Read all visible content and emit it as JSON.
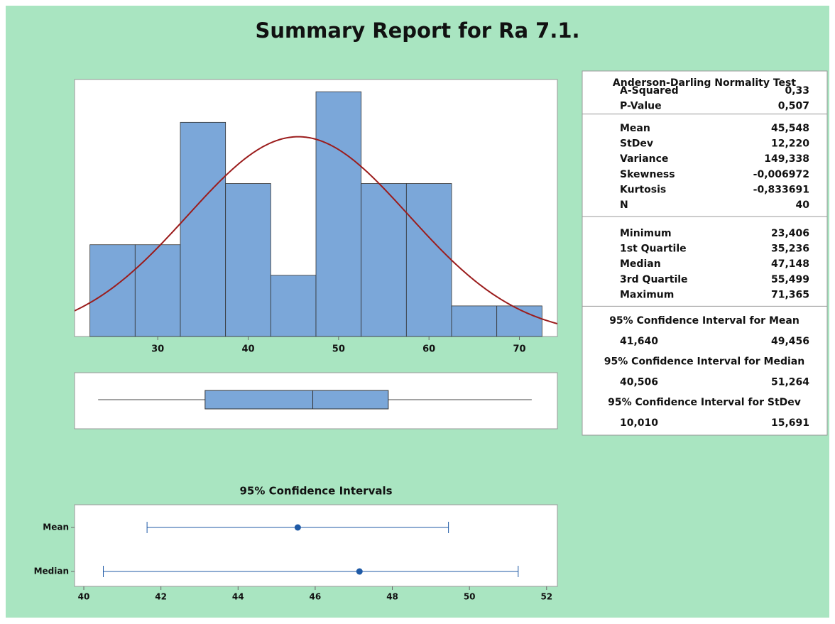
{
  "title": "Summary Report for Ra 7.1.",
  "chart_data": [
    {
      "type": "histogram",
      "bins": [
        22.5,
        27.5,
        32.5,
        37.5,
        42.5,
        47.5,
        52.5,
        57.5,
        62.5,
        67.5,
        72.5
      ],
      "counts": [
        3,
        3,
        7,
        5,
        2,
        8,
        5,
        5,
        1,
        1
      ],
      "color": "#7ba7d9",
      "xlim": [
        20.8,
        74.2
      ],
      "xticks": [
        30,
        40,
        50,
        60,
        70
      ],
      "ylim": [
        0,
        8.4
      ],
      "curve": {
        "type": "normal",
        "mean": 45.548,
        "stdev": 12.22,
        "color": "#9b1c1c"
      }
    },
    {
      "type": "boxplot",
      "min": 23.406,
      "q1": 35.236,
      "median": 47.148,
      "q3": 55.499,
      "max": 71.365,
      "color": "#7ba7d9",
      "xlim": [
        20.8,
        74.2
      ]
    },
    {
      "type": "interval",
      "title": "95% Confidence Intervals",
      "categories": [
        "Mean",
        "Median"
      ],
      "values": [
        45.548,
        47.148
      ],
      "lower": [
        41.64,
        40.506
      ],
      "upper": [
        49.456,
        51.264
      ],
      "color": "#1f5aa6",
      "xlim": [
        39.76,
        52.28
      ],
      "xticks": [
        40,
        42,
        44,
        46,
        48,
        50,
        52
      ]
    }
  ],
  "stats": {
    "title": "Anderson-Darling Normality Test",
    "sections": [
      [
        [
          "A-Squared",
          "0,33"
        ],
        [
          "P-Value",
          "0,507"
        ]
      ],
      [
        [
          "Mean",
          "45,548"
        ],
        [
          "StDev",
          "12,220"
        ],
        [
          "Variance",
          "149,338"
        ],
        [
          "Skewness",
          "-0,006972"
        ],
        [
          "Kurtosis",
          "-0,833691"
        ],
        [
          "N",
          "40"
        ]
      ],
      [
        [
          "Minimum",
          "23,406"
        ],
        [
          "1st Quartile",
          "35,236"
        ],
        [
          "Median",
          "47,148"
        ],
        [
          "3rd Quartile",
          "55,499"
        ],
        [
          "Maximum",
          "71,365"
        ]
      ]
    ],
    "intervals": [
      {
        "title": "95% Confidence Interval for Mean",
        "values": [
          "41,640",
          "49,456"
        ]
      },
      {
        "title": "95% Confidence Interval for Median",
        "values": [
          "40,506",
          "51,264"
        ]
      },
      {
        "title": "95% Confidence Interval for StDev",
        "values": [
          "10,010",
          "15,691"
        ]
      }
    ]
  }
}
